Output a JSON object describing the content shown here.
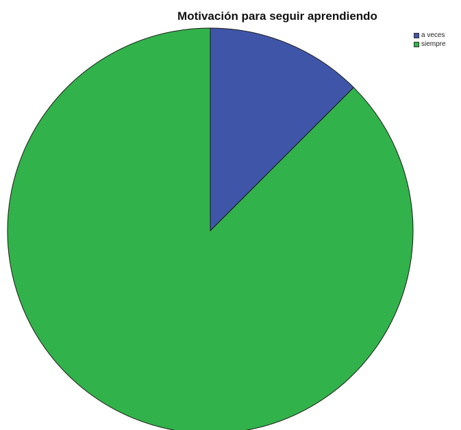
{
  "chart_data": {
    "type": "pie",
    "title": "Motivación para seguir aprendiendo",
    "categories": [
      "a veces",
      "siempre"
    ],
    "values": [
      12.5,
      87.5
    ],
    "colors": [
      "#3f56a8",
      "#32b24a"
    ],
    "legend_position": "top-right",
    "start_angle_deg": 0,
    "direction": "clockwise"
  }
}
